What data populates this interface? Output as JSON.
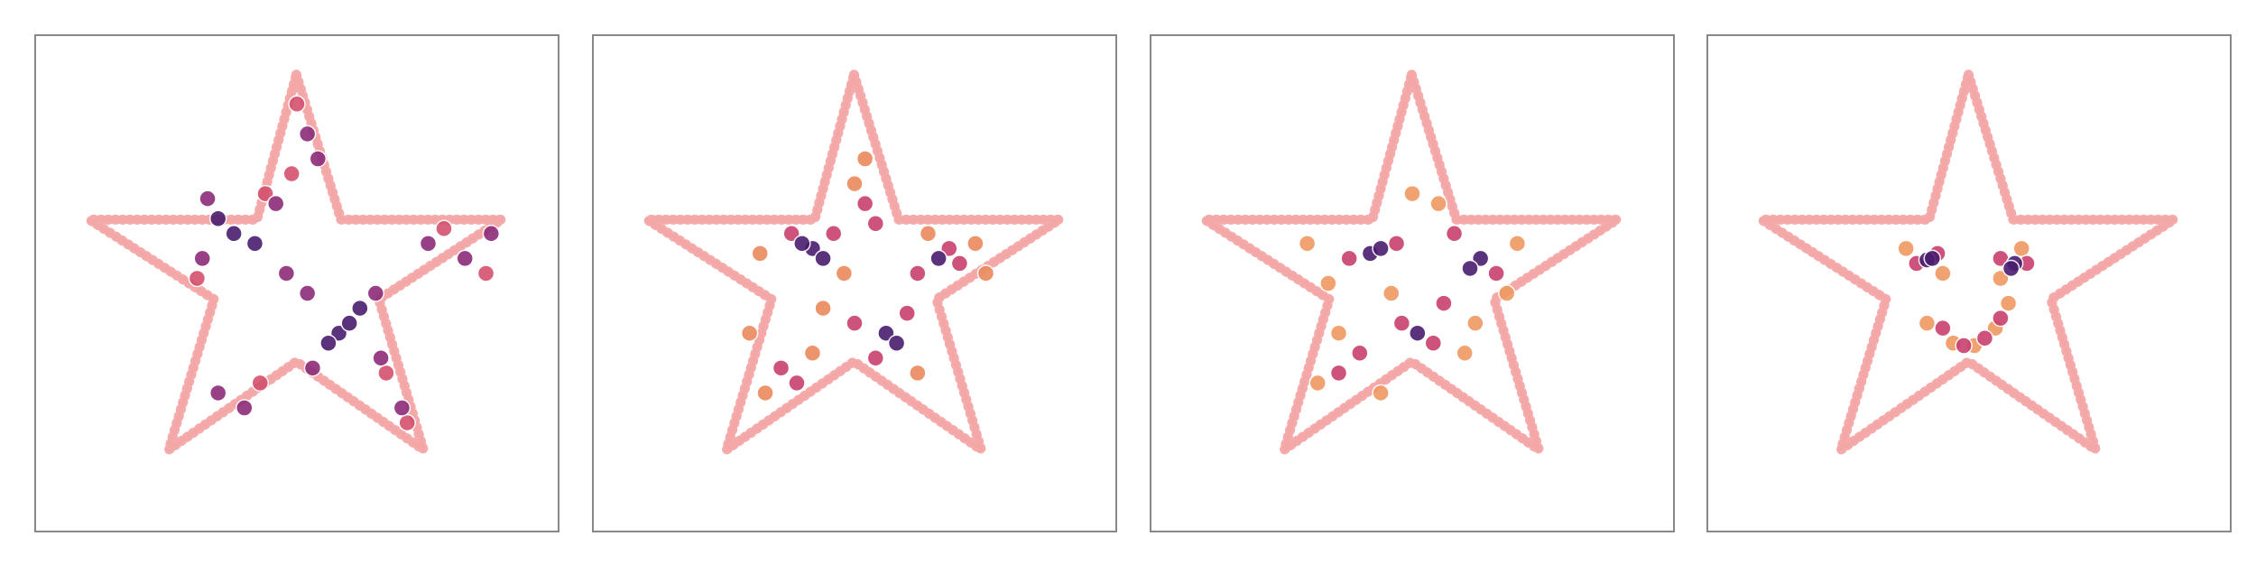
{
  "chart_data": [
    {
      "type": "scatter",
      "xlim": [
        0,
        100
      ],
      "ylim": [
        0,
        100
      ],
      "series": [
        {
          "mode": "line",
          "color": "#f4a6a6",
          "x": [
            49.9,
            58.4,
            89,
            65.6,
            74.1,
            49.9,
            25.6,
            34.2,
            10.5,
            42.4,
            49.9
          ],
          "values": [
            91.9,
            62.8,
            62.8,
            46.8,
            16.6,
            34.3,
            16.6,
            46.8,
            62.8,
            62.8,
            91.9
          ]
        },
        {
          "mode": "markers",
          "color": "#d4506e",
          "x": [
            50,
            49,
            86,
            31,
            67,
            43,
            71,
            78,
            44
          ],
          "values": [
            86,
            72,
            52,
            51,
            32,
            30,
            22,
            61,
            68
          ]
        },
        {
          "mode": "markers",
          "color": "#8c2c7a",
          "x": [
            32,
            46,
            48,
            33,
            53,
            66,
            52,
            65,
            75,
            82,
            87,
            35,
            40,
            52,
            54,
            70
          ],
          "values": [
            55,
            66,
            52,
            67,
            33,
            35,
            48,
            48,
            58,
            55,
            60,
            28,
            25,
            80,
            75,
            25
          ]
        },
        {
          "mode": "markers",
          "color": "#4a1d6e",
          "x": [
            38,
            42,
            35,
            58,
            60,
            56,
            62
          ],
          "values": [
            60,
            58,
            63,
            40,
            42,
            38,
            45
          ]
        }
      ]
    },
    {
      "type": "scatter",
      "xlim": [
        0,
        100
      ],
      "ylim": [
        0,
        100
      ],
      "series": [
        {
          "mode": "line",
          "color": "#f4a6a6",
          "x": [
            49.9,
            58.4,
            89,
            65.6,
            74.1,
            49.9,
            25.6,
            34.2,
            10.5,
            42.4,
            49.9
          ],
          "values": [
            91.9,
            62.8,
            62.8,
            46.8,
            16.6,
            34.3,
            16.6,
            46.8,
            62.8,
            62.8,
            91.9
          ]
        },
        {
          "mode": "markers",
          "color": "#ea8a5e",
          "x": [
            32,
            48,
            52,
            50,
            73,
            64,
            44,
            62,
            33,
            42,
            30,
            75
          ],
          "values": [
            56,
            52,
            75,
            70,
            58,
            60,
            45,
            32,
            28,
            36,
            40,
            52
          ]
        },
        {
          "mode": "markers",
          "color": "#c8406e",
          "x": [
            38,
            46,
            52,
            54,
            62,
            68,
            50,
            60,
            54,
            36,
            39,
            70
          ],
          "values": [
            60,
            60,
            66,
            62,
            52,
            57,
            42,
            44,
            35,
            33,
            30,
            54
          ]
        },
        {
          "mode": "markers",
          "color": "#4a1d6e",
          "x": [
            42,
            44,
            56,
            58,
            66,
            40
          ],
          "values": [
            57,
            55,
            40,
            38,
            55,
            58
          ]
        }
      ]
    },
    {
      "type": "scatter",
      "xlim": [
        0,
        100
      ],
      "ylim": [
        0,
        100
      ],
      "series": [
        {
          "mode": "line",
          "color": "#f4a6a6",
          "x": [
            49.9,
            58.4,
            89,
            65.6,
            74.1,
            49.9,
            25.6,
            34.2,
            10.5,
            42.4,
            49.9
          ],
          "values": [
            91.9,
            62.8,
            62.8,
            46.8,
            16.6,
            34.3,
            16.6,
            46.8,
            62.8,
            62.8,
            91.9
          ]
        },
        {
          "mode": "markers",
          "color": "#ef9a62",
          "x": [
            30,
            34,
            55,
            50,
            70,
            68,
            44,
            32,
            60,
            46,
            62,
            36
          ],
          "values": [
            58,
            50,
            66,
            68,
            58,
            48,
            28,
            30,
            36,
            48,
            42,
            40
          ]
        },
        {
          "mode": "markers",
          "color": "#c8406e",
          "x": [
            38,
            47,
            58,
            66,
            48,
            54,
            40,
            36,
            56
          ],
          "values": [
            55,
            58,
            60,
            52,
            42,
            38,
            36,
            32,
            46
          ]
        },
        {
          "mode": "markers",
          "color": "#4a1d6e",
          "x": [
            42,
            44,
            63,
            61,
            51
          ],
          "values": [
            56,
            57,
            55,
            53,
            40
          ]
        }
      ]
    },
    {
      "type": "scatter",
      "xlim": [
        0,
        100
      ],
      "ylim": [
        0,
        100
      ],
      "series": [
        {
          "mode": "line",
          "color": "#f4a6a6",
          "x": [
            49.9,
            58.4,
            89,
            65.6,
            74.1,
            49.9,
            25.6,
            34.2,
            10.5,
            42.4,
            49.9
          ],
          "values": [
            91.9,
            62.8,
            62.8,
            46.8,
            16.6,
            34.3,
            16.6,
            46.8,
            62.8,
            62.8,
            91.9
          ]
        },
        {
          "mode": "markers",
          "color": "#ef9a62",
          "x": [
            38,
            45,
            60,
            56,
            42,
            47,
            51,
            55,
            57.5
          ],
          "values": [
            57,
            52,
            57,
            51,
            42,
            38,
            37.5,
            41,
            46
          ]
        },
        {
          "mode": "markers",
          "color": "#c8406e",
          "x": [
            40,
            44,
            56,
            61,
            45,
            49,
            53,
            56
          ],
          "values": [
            54,
            56,
            55,
            54,
            41,
            37.5,
            39,
            43
          ]
        },
        {
          "mode": "markers",
          "color": "#4a1d6e",
          "x": [
            42,
            58.7,
            43,
            58
          ],
          "values": [
            54.7,
            54,
            55,
            53
          ]
        }
      ]
    }
  ]
}
